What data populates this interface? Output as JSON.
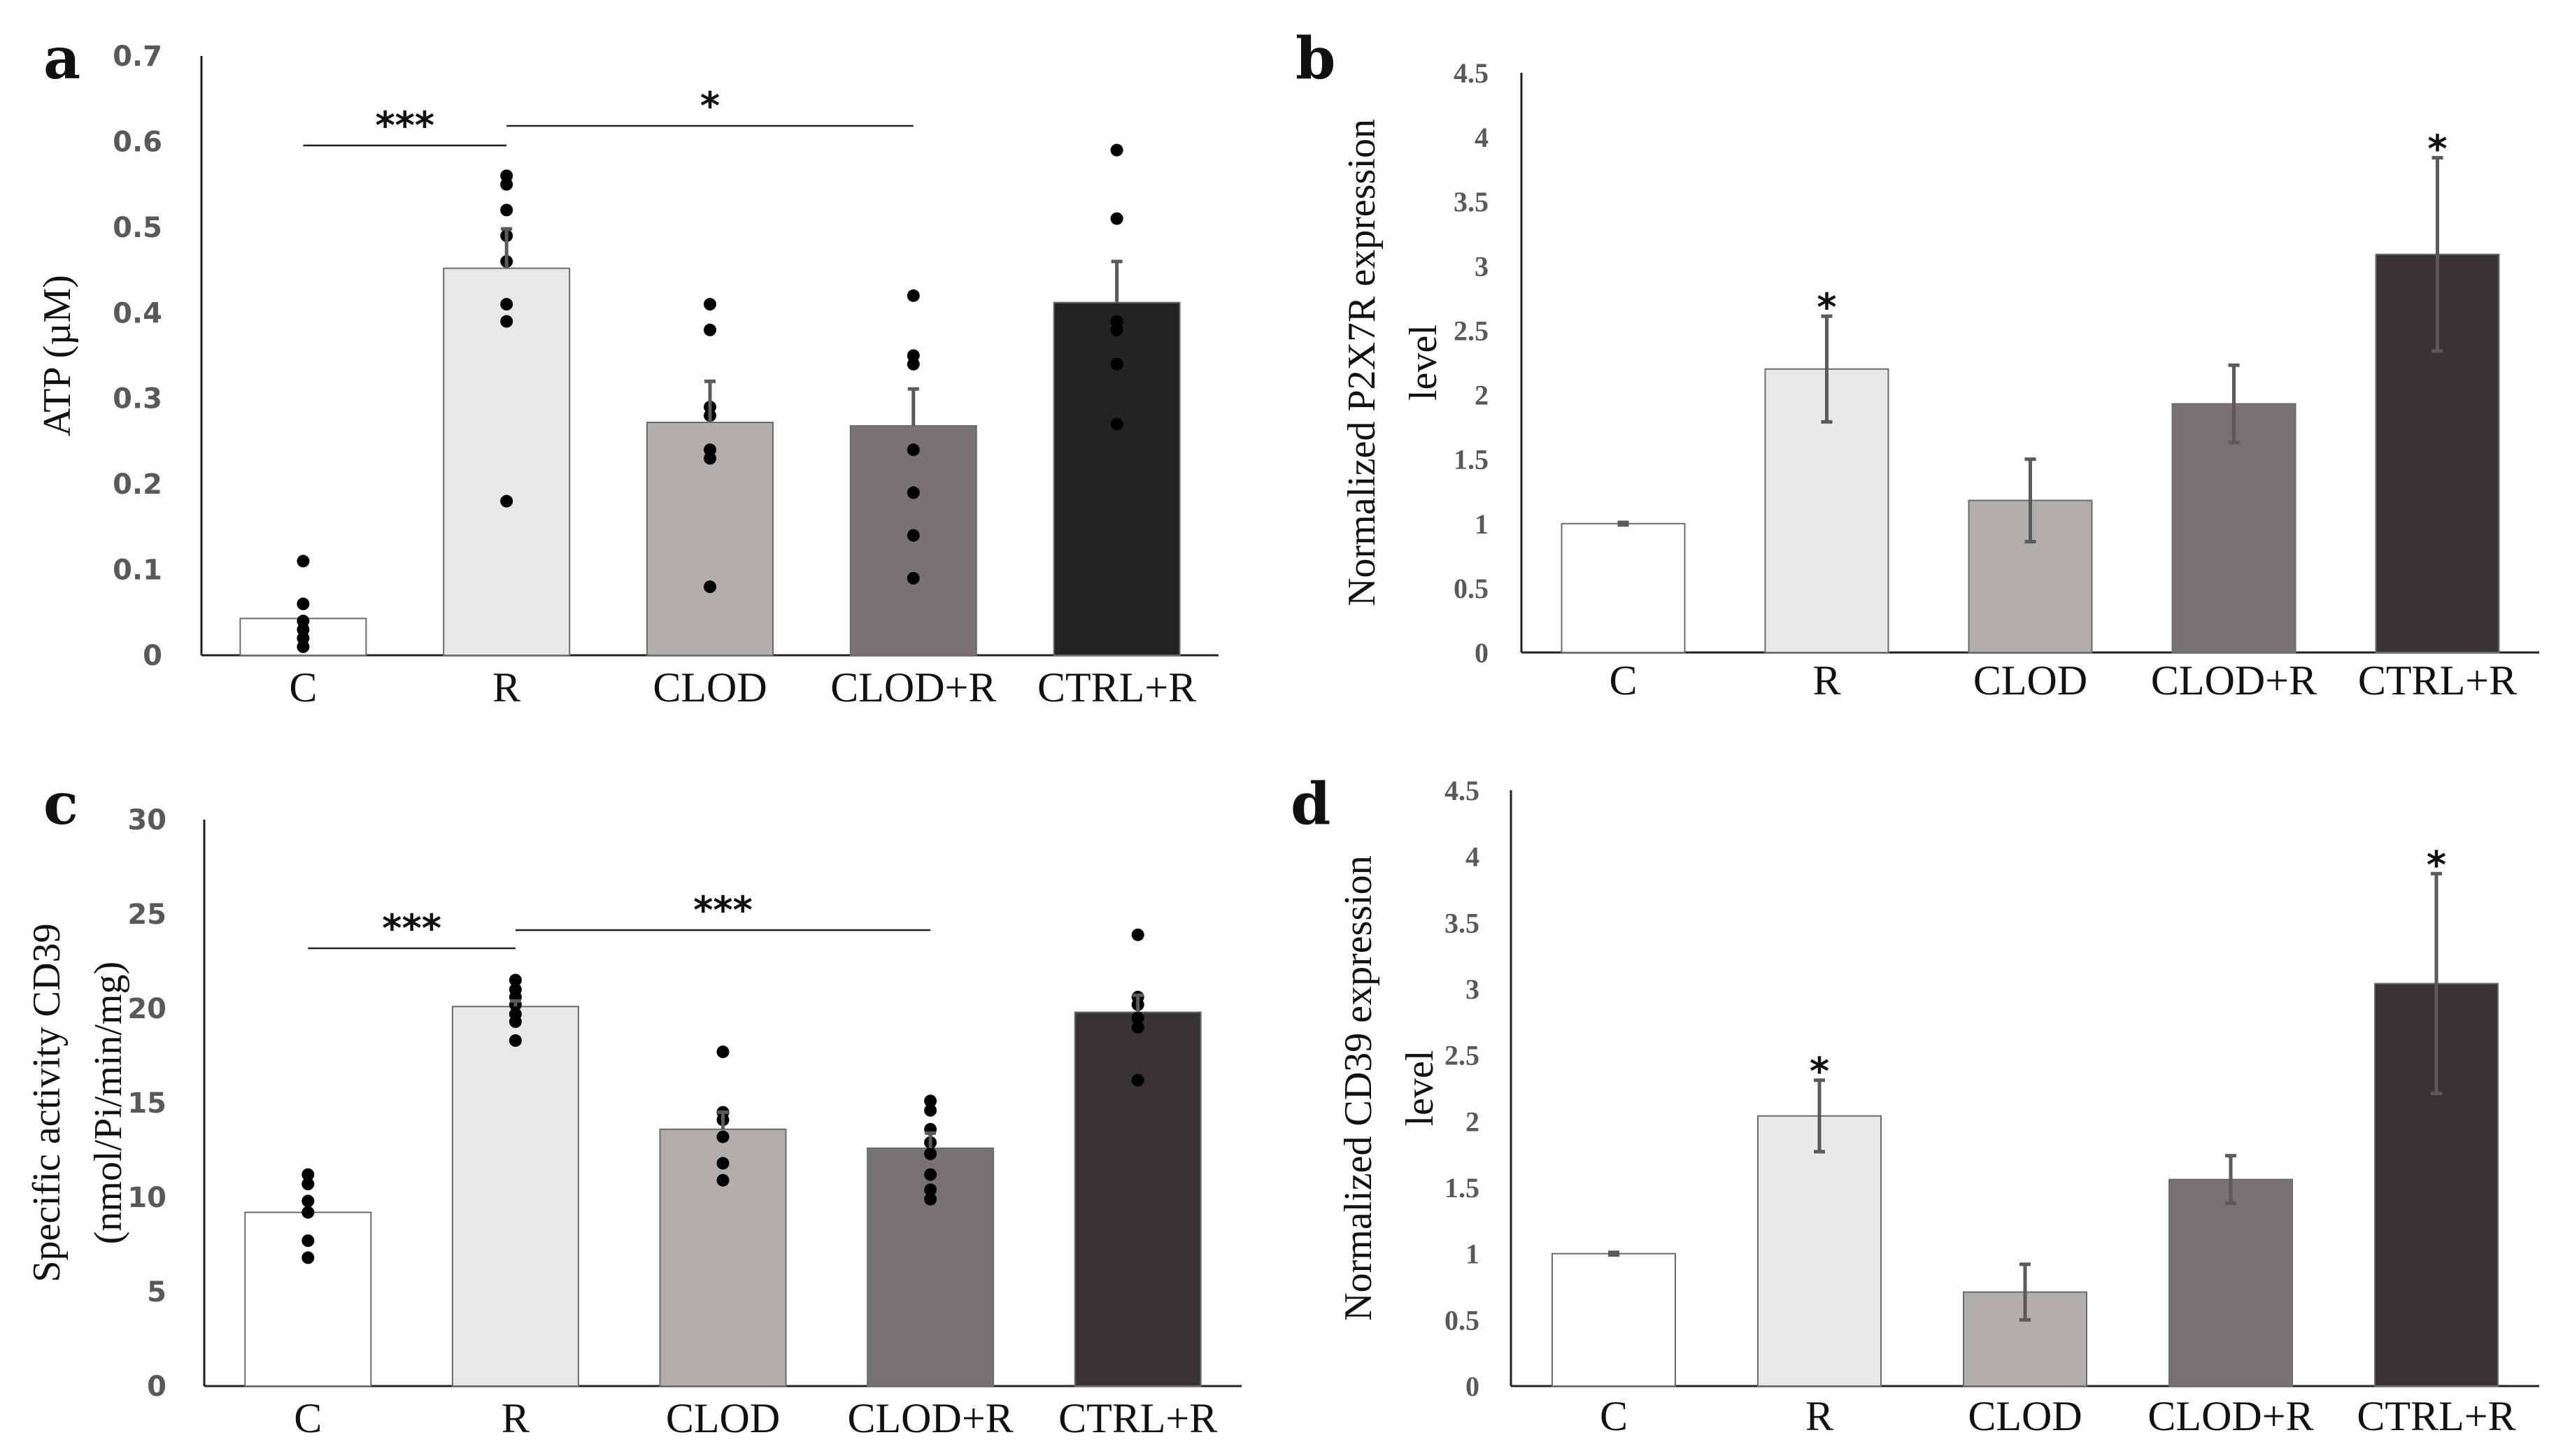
{
  "chart_data": [
    {
      "panel": "a",
      "type": "bar",
      "categories": [
        "C",
        "R",
        "CLOD",
        "CLOD+R",
        "CTRL+R"
      ],
      "values": [
        0.043,
        0.452,
        0.272,
        0.268,
        0.412
      ],
      "errors": [
        0,
        0.046,
        0.048,
        0.043,
        0.048
      ],
      "points": [
        [
          0.11,
          0.06,
          0.04,
          0.03,
          0.02,
          0.01
        ],
        [
          0.56,
          0.55,
          0.52,
          0.49,
          0.46,
          0.41,
          0.39,
          0.18
        ],
        [
          0.41,
          0.38,
          0.29,
          0.28,
          0.24,
          0.23,
          0.08
        ],
        [
          0.42,
          0.35,
          0.34,
          0.24,
          0.19,
          0.14,
          0.09
        ],
        [
          0.59,
          0.51,
          0.39,
          0.38,
          0.34,
          0.27
        ]
      ],
      "colors": [
        "#ffffff",
        "#e8e8e8",
        "#b1aeac",
        "#787372",
        "#232323"
      ],
      "ylabel": "ATP (µM)",
      "ylim": [
        0,
        0.7
      ],
      "yticks": [
        "0",
        "0.1",
        "0.2",
        "0.3",
        "0.4",
        "0.5",
        "0.6",
        "0.7"
      ],
      "annotations": [
        {
          "from": "C",
          "to": "R",
          "label": "***"
        },
        {
          "from": "R",
          "to": "CLOD+R",
          "label": "*"
        }
      ]
    },
    {
      "panel": "b",
      "type": "bar",
      "categories": [
        "C",
        "R",
        "CLOD",
        "CLOD+R",
        "CTRL+R"
      ],
      "values": [
        1.0,
        2.2,
        1.18,
        1.93,
        3.09
      ],
      "errors": [
        0.01,
        0.41,
        0.32,
        0.3,
        0.75
      ],
      "colors": [
        "#ffffff",
        "#e8e8e8",
        "#b1aeac",
        "#787372",
        "#383434"
      ],
      "ylabel": [
        "Normalized P2X7R expression",
        "level"
      ],
      "ylim": [
        0,
        4.5
      ],
      "yticks": [
        "0",
        "0.5",
        "1",
        "1.5",
        "2",
        "2.5",
        "3",
        "3.5",
        "4",
        "4.5"
      ],
      "markers": [
        "",
        "*",
        "",
        "",
        "*"
      ]
    },
    {
      "panel": "c",
      "type": "bar",
      "categories": [
        "C",
        "R",
        "CLOD",
        "CLOD+R",
        "CTRL+R"
      ],
      "values": [
        9.2,
        20.1,
        13.6,
        12.6,
        19.8
      ],
      "errors": [
        0,
        0.3,
        0.9,
        0.8,
        0.9
      ],
      "points": [
        [
          11.2,
          10.7,
          9.8,
          9.2,
          7.7,
          6.8
        ],
        [
          21.5,
          21.0,
          20.6,
          20.2,
          19.7,
          19.3,
          18.3
        ],
        [
          17.7,
          14.5,
          14.1,
          13.2,
          11.8,
          10.9
        ],
        [
          15.1,
          14.6,
          13.6,
          12.9,
          12.3,
          11.2,
          10.4,
          9.9
        ],
        [
          23.9,
          20.6,
          20.2,
          19.5,
          19.0,
          16.2
        ]
      ],
      "colors": [
        "#ffffff",
        "#e8e8e8",
        "#b1aeac",
        "#787372",
        "#383434"
      ],
      "ylabel": [
        "Specific activity CD39",
        "(nmol/Pi/min/mg)"
      ],
      "ylim": [
        0,
        30
      ],
      "yticks": [
        "0",
        "5",
        "10",
        "15",
        "20",
        "25",
        "30"
      ],
      "annotations": [
        {
          "from": "C",
          "to": "R",
          "label": "***"
        },
        {
          "from": "R",
          "to": "CLOD+R",
          "label": "***"
        }
      ]
    },
    {
      "panel": "d",
      "type": "bar",
      "categories": [
        "C",
        "R",
        "CLOD",
        "CLOD+R",
        "CTRL+R"
      ],
      "values": [
        1.0,
        2.04,
        0.71,
        1.56,
        3.04
      ],
      "errors": [
        0.01,
        0.27,
        0.21,
        0.18,
        0.83
      ],
      "colors": [
        "#ffffff",
        "#e8e8e8",
        "#b1aeac",
        "#787372",
        "#383434"
      ],
      "ylabel": [
        "Normalized CD39 expression",
        "level"
      ],
      "ylim": [
        0,
        4.5
      ],
      "yticks": [
        "0",
        "0.5",
        "1",
        "1.5",
        "2",
        "2.5",
        "3",
        "3.5",
        "4",
        "4.5"
      ],
      "markers": [
        "",
        "*",
        "",
        "",
        "*"
      ]
    }
  ]
}
